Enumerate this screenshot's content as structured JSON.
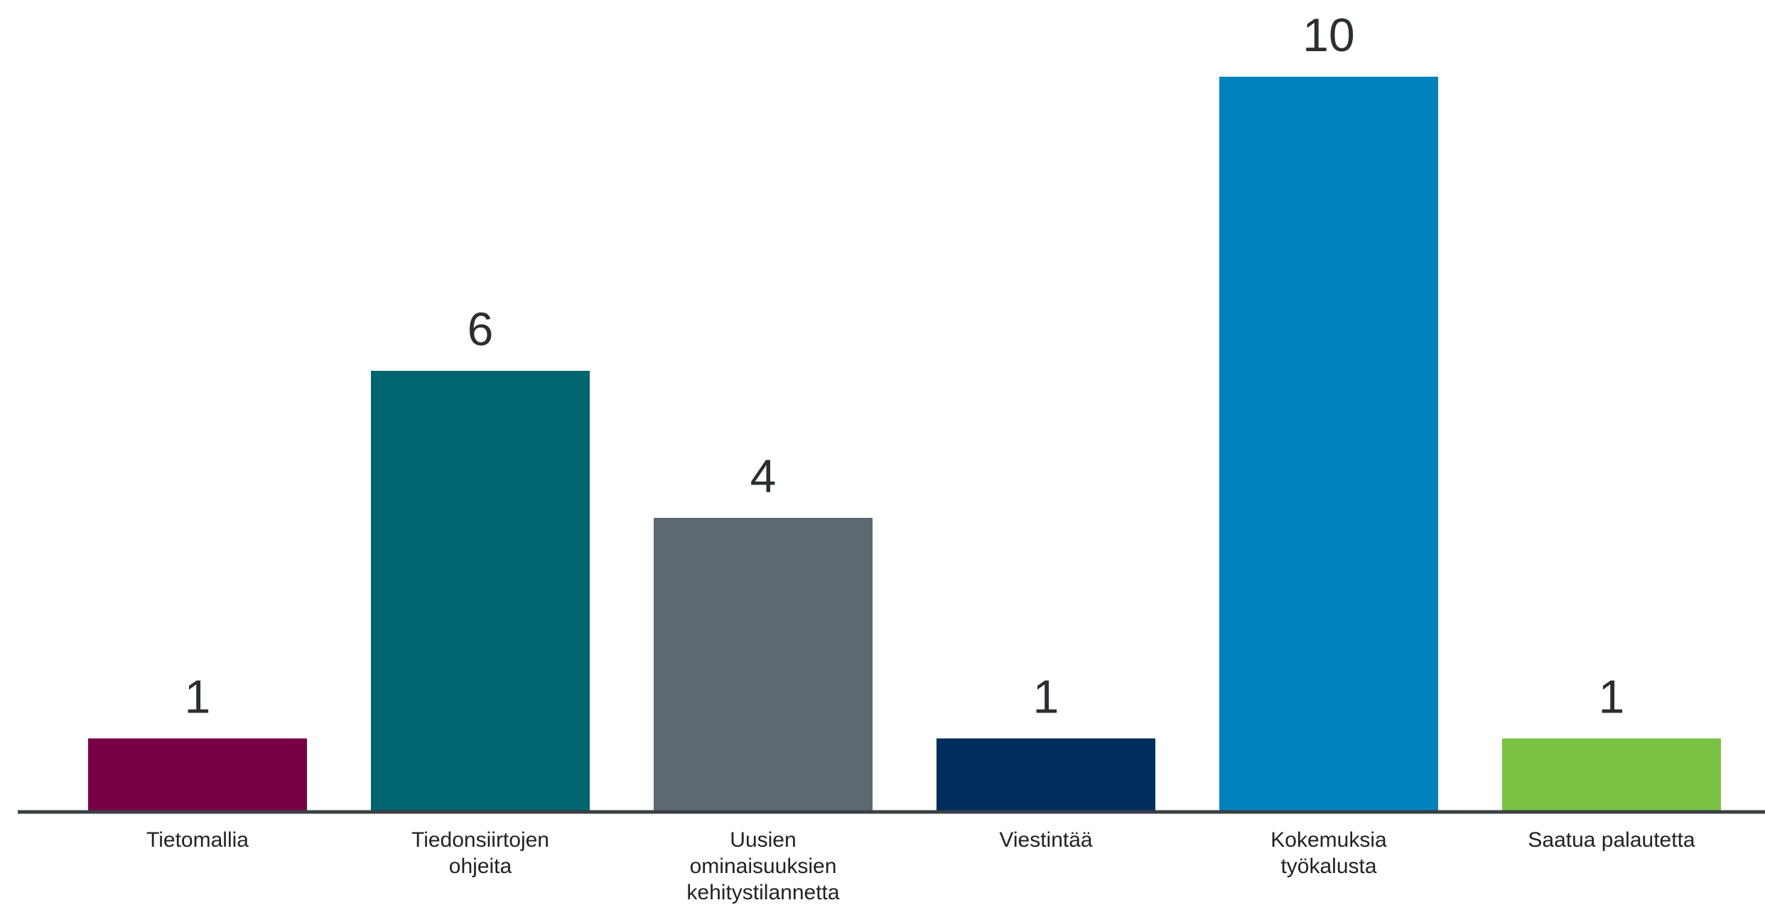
{
  "chart_data": {
    "type": "bar",
    "categories": [
      [
        "Tietomallia"
      ],
      [
        "Tiedonsiirtojen",
        "ohjeita"
      ],
      [
        "Uusien",
        "ominaisuuksien",
        "kehitystilannetta"
      ],
      [
        "Viestintää"
      ],
      [
        "Kokemuksia",
        "työkalusta"
      ],
      [
        "Saatua palautetta"
      ]
    ],
    "values": [
      1,
      6,
      4,
      1,
      10,
      1
    ],
    "data_labels": [
      "1",
      "6",
      "4",
      "1",
      "10",
      "1"
    ],
    "colors": [
      "#7a0045",
      "#006570",
      "#5d6870",
      "#002d5c",
      "#0082be",
      "#7ac143"
    ],
    "axis_color": "#3a3f44",
    "ylim": [
      0,
      10
    ],
    "grid": false,
    "legend": "none",
    "title": "",
    "xlabel": "",
    "ylabel": ""
  }
}
